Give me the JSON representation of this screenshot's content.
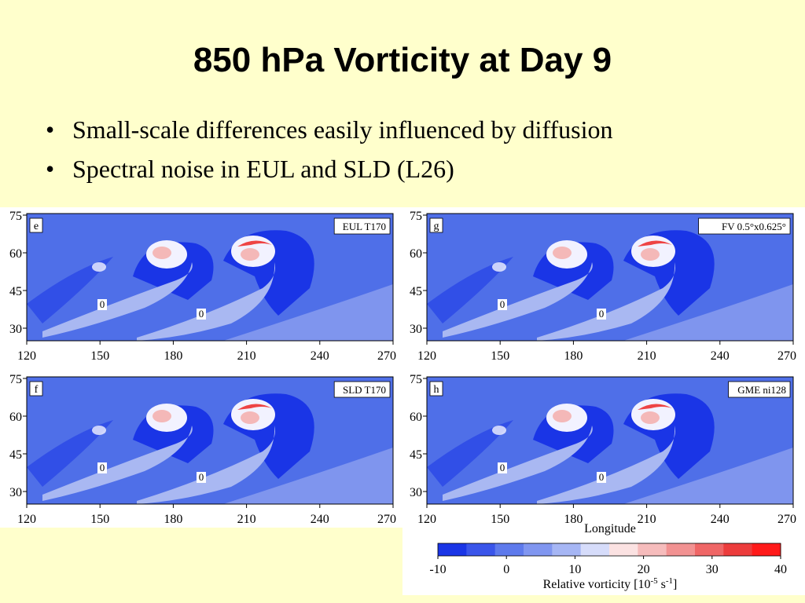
{
  "slide": {
    "title": "850 hPa Vorticity at Day 9",
    "bullets": [
      "Small-scale differences easily influenced by diffusion",
      "Spectral noise in EUL and SLD (L26)"
    ]
  },
  "colors": {
    "background": "#ffffcc",
    "field_base": "#4f6fe8",
    "strong_negative": "#1a35e6",
    "light_blue": "#a9b8f2",
    "white": "#f2f2ff",
    "pink": "#f4b8b8",
    "red": "#ee4444"
  },
  "panels": [
    {
      "letter": "e",
      "label": "EUL T170"
    },
    {
      "letter": "g",
      "label": "FV 0.5°x0.625°"
    },
    {
      "letter": "f",
      "label": "SLD T170"
    },
    {
      "letter": "h",
      "label": "GME ni128"
    }
  ],
  "axes": {
    "x_ticks": [
      "120",
      "150",
      "180",
      "210",
      "240",
      "270"
    ],
    "y_ticks": [
      "75",
      "60",
      "45",
      "30"
    ],
    "xlabel": "Longitude",
    "contour_label": "0"
  },
  "colorbar": {
    "label_prefix": "Relative vorticity [10",
    "label_exp1": "-5",
    "label_mid": " s",
    "label_exp2": "-1",
    "label_suffix": "]",
    "ticks": [
      "-10",
      "0",
      "10",
      "20",
      "30",
      "40"
    ],
    "colors": [
      "#1a35e6",
      "#3a55ea",
      "#5e7aec",
      "#8096f0",
      "#a6b6f4",
      "#d6dcfa",
      "#fbe2e2",
      "#f6bcbc",
      "#f29292",
      "#ef6666",
      "#ec3c3c",
      "#ff1a1a"
    ]
  }
}
